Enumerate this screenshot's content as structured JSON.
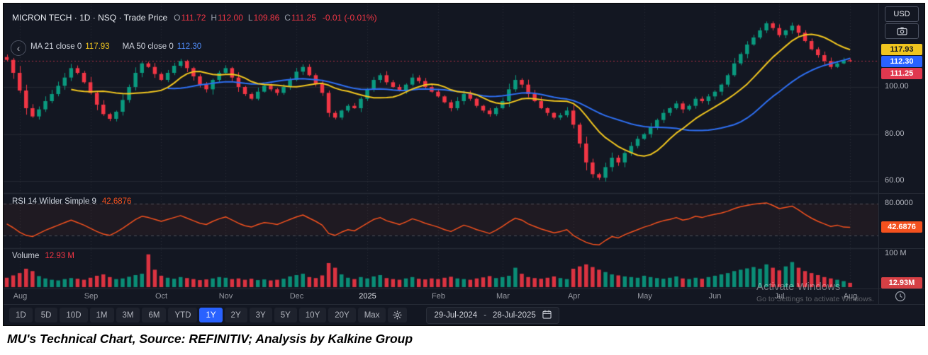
{
  "colors": {
    "bg": "#131722",
    "up": "#0a9a7f",
    "down": "#f23645",
    "ma21": "#f0c51f",
    "ma50": "#2e6ff2",
    "rsi": "#f4511e",
    "accent": "#2962ff",
    "badge_last": "#e0384f",
    "badge_vol": "#d64045",
    "axis_text": "#b2b5be"
  },
  "header": {
    "title": "MICRON TECH · 1D · NSQ · Trade Price",
    "ohlc": [
      {
        "l": "O",
        "v": "111.72"
      },
      {
        "l": "H",
        "v": "112.00"
      },
      {
        "l": "L",
        "v": "109.86"
      },
      {
        "l": "C",
        "v": "111.25"
      }
    ],
    "change": "-0.01 (-0.01%)",
    "indicators": [
      {
        "name": "MA 21 close 0",
        "value": "117.93",
        "color": "#f0c51f"
      },
      {
        "name": "MA 50 close 0",
        "value": "112.30",
        "color": "#4f8bf7"
      }
    ]
  },
  "axis": {
    "currency": "USD",
    "price_labels": [
      "100.00",
      "80.00",
      "60.00"
    ],
    "price_badges": [
      {
        "text": "117.93",
        "bg": "#f0c51f",
        "fg": "#16181d",
        "anchor": "ma21"
      },
      {
        "text": "112.30",
        "bg": "#2962ff",
        "fg": "#ffffff",
        "anchor": "ma50"
      },
      {
        "text": "111.25",
        "bg": "#e0384f",
        "fg": "#ffffff",
        "anchor": "last"
      }
    ],
    "rsi_label": "80.0000",
    "rsi_badge": "42.6876",
    "volume_label": "100 M",
    "volume_badge": "12.93M"
  },
  "panes": {
    "rsi_title": "RSI 14 Wilder Simple 9",
    "rsi_value": "42.6876",
    "volume_title": "Volume",
    "volume_value": "12.93 M"
  },
  "time_axis": {
    "ticks": [
      "Aug",
      "Sep",
      "Oct",
      "Nov",
      "Dec",
      "2025",
      "Feb",
      "Mar",
      "Apr",
      "May",
      "Jun",
      "Jul",
      "Aug"
    ],
    "bright": "2025"
  },
  "toolbar": {
    "ranges": [
      "1D",
      "5D",
      "10D",
      "1M",
      "3M",
      "6M",
      "YTD",
      "1Y",
      "2Y",
      "3Y",
      "5Y",
      "10Y",
      "20Y",
      "Max"
    ],
    "active": "1Y",
    "date_from": "29-Jul-2024",
    "date_sep": "-",
    "date_to": "28-Jul-2025"
  },
  "watermark": {
    "line1": "Activate Windows",
    "line2": "Go to Settings to activate Windows."
  },
  "caption": "MU's Technical Chart, Source: REFINITIV; Analysis by Kalkine Group",
  "chart_data": {
    "type": "candlestick",
    "title": "MICRON TECH 1D NSQ Trade Price",
    "x_ticks": [
      "Aug",
      "Sep",
      "Oct",
      "Nov",
      "Dec",
      "2025",
      "Feb",
      "Mar",
      "Apr",
      "May",
      "Jun",
      "Jul",
      "Aug"
    ],
    "date_range": [
      "29-Jul-2024",
      "28-Jul-2025"
    ],
    "price": {
      "ylim": [
        55,
        133
      ],
      "gridlines": [
        100,
        80,
        60
      ],
      "last_ohlc": {
        "open": 111.72,
        "high": 112.0,
        "low": 109.86,
        "close": 111.25,
        "change": -0.01,
        "change_pct": -0.01
      },
      "close": [
        111.5,
        106,
        98.5,
        91,
        87.5,
        90.5,
        94,
        97,
        100.5,
        104,
        108,
        106,
        102,
        97.5,
        92.5,
        88.5,
        86.5,
        89.5,
        94.5,
        100,
        106,
        110,
        108.5,
        105.5,
        103,
        106,
        109,
        111,
        108,
        104.5,
        101,
        99,
        103,
        106,
        108,
        104,
        100,
        97,
        95,
        98,
        100.5,
        99,
        97.5,
        100,
        103,
        106.5,
        108.5,
        105,
        101.5,
        97.5,
        89,
        87,
        90,
        92,
        91,
        95,
        99,
        103,
        105,
        102,
        100,
        98.5,
        101,
        104,
        102.5,
        100,
        98,
        96,
        93.5,
        91,
        94,
        97,
        95,
        92,
        90,
        88.5,
        91,
        94,
        99,
        103,
        101,
        97,
        94,
        91,
        89,
        87,
        88,
        90,
        84,
        76,
        68,
        63,
        61.5,
        66,
        70,
        68,
        72,
        75,
        78,
        80,
        83,
        86,
        89,
        91,
        93,
        90.5,
        92,
        95,
        94,
        96,
        98,
        101,
        105,
        110,
        114,
        118,
        121,
        124,
        127,
        125,
        122,
        124,
        126,
        123,
        119.5,
        116,
        113.5,
        111,
        108.5,
        110,
        111.3,
        111.25
      ]
    },
    "indicators": [
      {
        "name": "MA",
        "period": 21,
        "source": "close",
        "last": 117.93
      },
      {
        "name": "MA",
        "period": 50,
        "source": "close",
        "last": 112.3
      }
    ],
    "rsi": {
      "period": 14,
      "type": "Wilder",
      "smoothing": 9,
      "last": 42.6876,
      "levels": [
        80,
        30
      ],
      "ylim": [
        12,
        92
      ],
      "values": [
        48,
        42,
        35,
        30,
        28,
        33,
        38,
        42,
        46,
        50,
        54,
        50,
        46,
        41,
        36,
        32,
        30,
        35,
        41,
        48,
        55,
        60,
        58,
        55,
        52,
        55,
        58,
        61,
        57,
        53,
        49,
        47,
        52,
        56,
        59,
        54,
        49,
        45,
        43,
        47,
        50,
        49,
        47,
        51,
        55,
        59,
        62,
        57,
        52,
        46,
        33,
        30,
        35,
        39,
        37,
        43,
        49,
        55,
        58,
        53,
        50,
        47,
        51,
        56,
        53,
        49,
        46,
        43,
        39,
        36,
        41,
        46,
        43,
        39,
        36,
        33,
        38,
        44,
        51,
        57,
        54,
        48,
        44,
        40,
        37,
        34,
        36,
        39,
        30,
        24,
        19,
        16,
        15,
        22,
        28,
        26,
        31,
        35,
        39,
        43,
        46,
        50,
        53,
        55,
        58,
        54,
        56,
        60,
        58,
        61,
        63,
        65,
        68,
        72,
        75,
        77,
        79,
        80,
        81,
        77,
        72,
        74,
        76,
        70,
        63,
        57,
        52,
        48,
        44,
        46,
        43,
        42.69
      ]
    },
    "volume": {
      "unit": "M",
      "last": 12.93,
      "axis_max": 100,
      "ylim": [
        0,
        110
      ],
      "values": [
        28,
        35,
        42,
        55,
        48,
        33,
        26,
        22,
        20,
        24,
        27,
        25,
        22,
        28,
        34,
        38,
        30,
        24,
        26,
        31,
        36,
        40,
        98,
        52,
        34,
        28,
        25,
        30,
        27,
        24,
        21,
        23,
        26,
        30,
        28,
        24,
        26,
        22,
        25,
        21,
        23,
        20,
        22,
        25,
        32,
        36,
        40,
        30,
        27,
        35,
        72,
        58,
        38,
        28,
        24,
        30,
        26,
        32,
        36,
        27,
        24,
        22,
        26,
        30,
        25,
        23,
        26,
        24,
        28,
        31,
        26,
        24,
        22,
        26,
        29,
        33,
        27,
        30,
        34,
        58,
        40,
        30,
        27,
        25,
        28,
        32,
        27,
        24,
        55,
        62,
        68,
        60,
        52,
        45,
        38,
        35,
        32,
        30,
        28,
        34,
        30,
        27,
        25,
        28,
        32,
        26,
        24,
        28,
        25,
        30,
        34,
        38,
        42,
        48,
        52,
        56,
        60,
        55,
        68,
        58,
        50,
        62,
        75,
        58,
        48,
        42,
        36,
        30,
        26,
        22,
        18,
        12.93
      ]
    }
  }
}
